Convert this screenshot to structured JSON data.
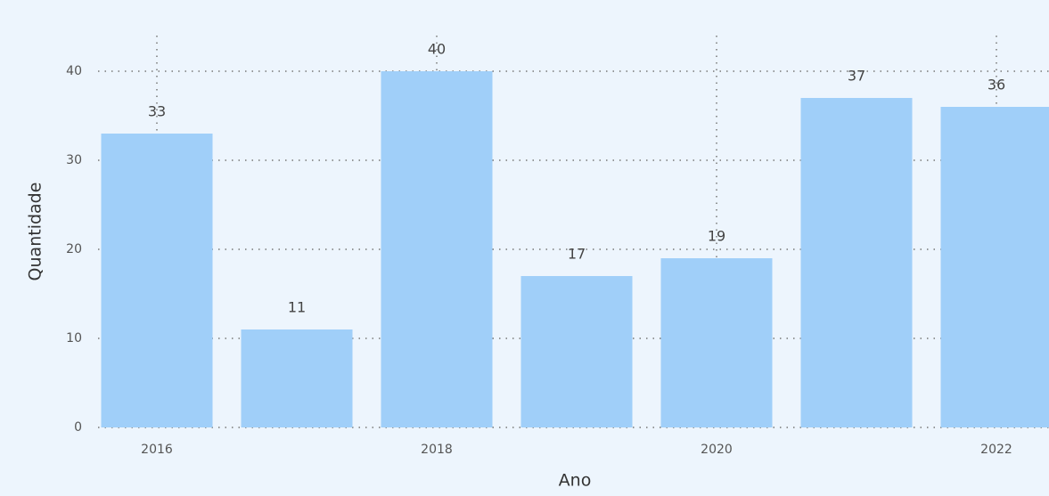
{
  "chart_data": {
    "type": "bar",
    "categories": [
      "2016",
      null,
      "2018",
      null,
      "2020",
      null,
      "2022"
    ],
    "values": [
      33,
      11,
      40,
      17,
      19,
      37,
      36
    ],
    "color": "#a0cff9",
    "x_label": "Ano",
    "y_label": "Quantidade",
    "ylim": [
      0,
      40
    ],
    "yticks": [
      0,
      10,
      20,
      30,
      40
    ],
    "grid": true
  }
}
